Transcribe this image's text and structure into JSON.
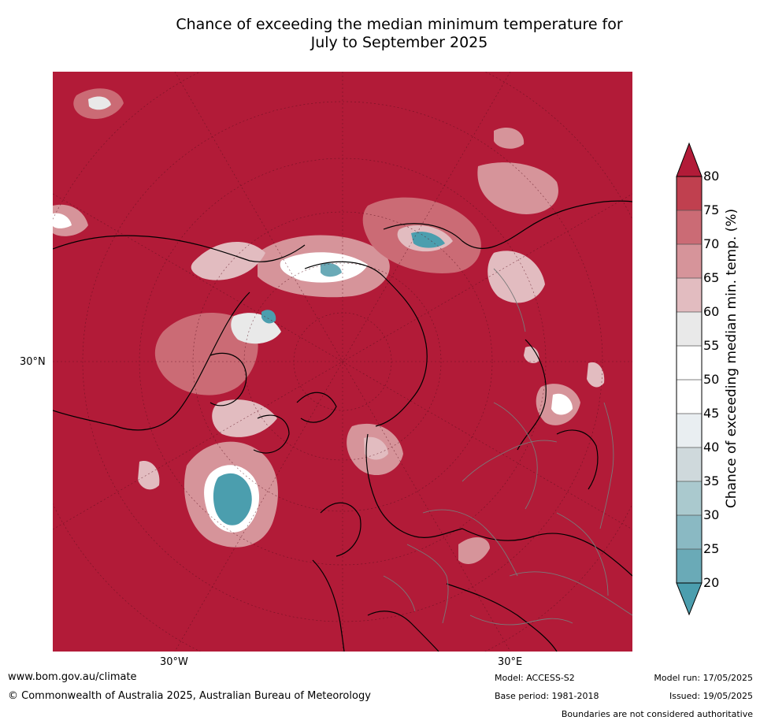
{
  "title_line1": "Chance of exceeding the median minimum temperature for",
  "title_line2": "July to September 2025",
  "map": {
    "lat_label": "30°N",
    "lon_labels": [
      "30°W",
      "30°E"
    ],
    "projection": "north polar stereographic",
    "dominant_color": "#b21b38"
  },
  "colorbar": {
    "label": "Chance of exceeding median min. temp. (%)",
    "ticks": [
      "80",
      "75",
      "70",
      "65",
      "60",
      "55",
      "50",
      "45",
      "40",
      "35",
      "30",
      "25",
      "20"
    ],
    "colors": [
      "#b21b38",
      "#c0404f",
      "#cb6b75",
      "#d6949a",
      "#e2bcc0",
      "#e9e9e9",
      "#ffffff",
      "#ffffff",
      "#e9eef1",
      "#cfd9dc",
      "#aac9ce",
      "#8ab9c3",
      "#6aaab7",
      "#4b9eae"
    ],
    "extend": "both"
  },
  "footer": {
    "url": "www.bom.gov.au/climate",
    "copyright": "© Commonwealth of Australia 2025, Australian Bureau of Meteorology",
    "model": "Model: ACCESS-S2",
    "base_period": "Base period: 1981-2018",
    "model_run": "Model run: 17/05/2025",
    "issued": "Issued: 19/05/2025",
    "disclaimer": "Boundaries are not considered authoritative"
  }
}
